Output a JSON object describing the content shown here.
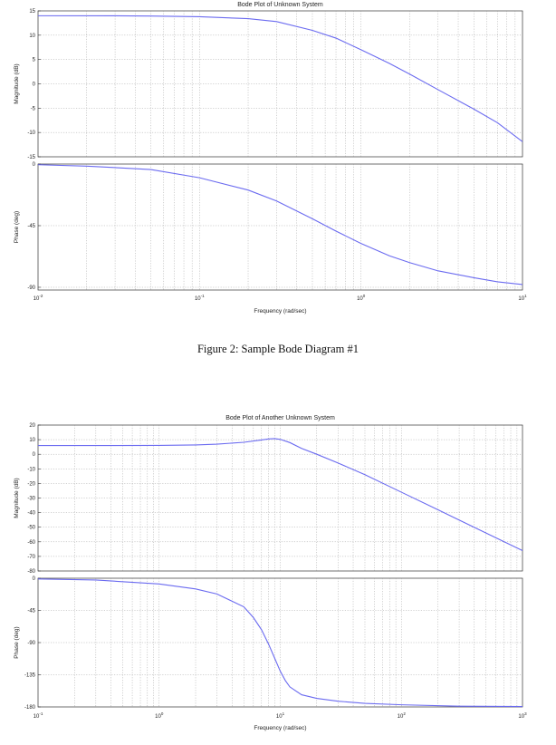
{
  "caption": "Figure 2: Sample Bode Diagram #1",
  "chart_data": [
    {
      "type": "line",
      "title": "Bode Plot of Unknown System",
      "xlabel": "Frequency (rad/sec)",
      "x_scale": "log",
      "xlim": [
        0.01,
        10
      ],
      "x_tick_labels": [
        {
          "label": "10",
          "exp": "-2"
        },
        {
          "label": "10",
          "exp": "-1"
        },
        {
          "label": "10",
          "exp": "0"
        },
        {
          "label": "10",
          "exp": "1"
        }
      ],
      "colors": {
        "curve": "#6b6bf0"
      },
      "panels": [
        {
          "ylabel": "Magnitude (dB)",
          "ylim": [
            -15,
            15
          ],
          "y_ticks": [
            15,
            10,
            5,
            0,
            -5,
            -10,
            -15
          ],
          "y_tick_labels": [
            "15",
            "10",
            "5",
            "0",
            "-5",
            "-10",
            "-15"
          ],
          "x": [
            0.01,
            0.03,
            0.05,
            0.1,
            0.2,
            0.3,
            0.5,
            0.7,
            1.0,
            1.5,
            2.0,
            3.0,
            5.0,
            7.0,
            10.0
          ],
          "y": [
            14.0,
            13.98,
            13.95,
            13.8,
            13.4,
            12.8,
            11.0,
            9.4,
            7.0,
            4.2,
            2.0,
            -1.2,
            -5.2,
            -8.0,
            -11.9
          ]
        },
        {
          "ylabel": "Phase (deg)",
          "ylim": [
            -92,
            0
          ],
          "y_ticks": [
            0,
            -45,
            -90
          ],
          "y_tick_labels": [
            "0",
            "-45",
            "-90"
          ],
          "x": [
            0.01,
            0.02,
            0.05,
            0.1,
            0.2,
            0.3,
            0.5,
            0.7,
            1.0,
            1.5,
            2.0,
            3.0,
            5.0,
            7.0,
            10.0
          ],
          "y": [
            -0.5,
            -1.5,
            -4,
            -10,
            -19,
            -27,
            -40,
            -49,
            -58,
            -67,
            -72,
            -78,
            -83,
            -86,
            -88
          ]
        }
      ]
    },
    {
      "type": "line",
      "title": "Bode Plot of Another Unknown System",
      "xlabel": "Frequency (rad/sec)",
      "x_scale": "log",
      "xlim": [
        0.1,
        1000
      ],
      "x_tick_labels": [
        {
          "label": "10",
          "exp": "-1"
        },
        {
          "label": "10",
          "exp": "0"
        },
        {
          "label": "10",
          "exp": "1"
        },
        {
          "label": "10",
          "exp": "2"
        },
        {
          "label": "10",
          "exp": "3"
        }
      ],
      "colors": {
        "curve": "#6b6bf0"
      },
      "panels": [
        {
          "ylabel": "Magnitude (dB)",
          "ylim": [
            -80,
            20
          ],
          "y_ticks": [
            20,
            10,
            0,
            -10,
            -20,
            -30,
            -40,
            -50,
            -60,
            -70,
            -80
          ],
          "y_tick_labels": [
            "20",
            "10",
            "0",
            "-10",
            "-20",
            "-30",
            "-40",
            "-50",
            "-60",
            "-70",
            "-80"
          ],
          "x": [
            0.1,
            0.3,
            1,
            2,
            3,
            5,
            7,
            8,
            9,
            10,
            12,
            15,
            20,
            30,
            50,
            100,
            200,
            500,
            1000
          ],
          "y": [
            6,
            6,
            6.05,
            6.4,
            6.9,
            8.2,
            9.8,
            10.5,
            10.7,
            10.2,
            8,
            4,
            0,
            -6,
            -14,
            -26,
            -38,
            -54,
            -66
          ]
        },
        {
          "ylabel": "Phase (deg)",
          "ylim": [
            -180,
            0
          ],
          "y_ticks": [
            0,
            -45,
            -90,
            -135,
            -180
          ],
          "y_tick_labels": [
            "0",
            "-45",
            "-90",
            "-135",
            "-180"
          ],
          "x": [
            0.1,
            0.3,
            1,
            2,
            3,
            5,
            6,
            7,
            8,
            9,
            10,
            11,
            12,
            15,
            20,
            30,
            50,
            100,
            300,
            1000
          ],
          "y": [
            -1,
            -2.5,
            -8,
            -15,
            -22,
            -40,
            -55,
            -72,
            -92,
            -112,
            -130,
            -143,
            -152,
            -163,
            -168,
            -172,
            -175,
            -177,
            -179,
            -179.5
          ]
        }
      ]
    }
  ]
}
